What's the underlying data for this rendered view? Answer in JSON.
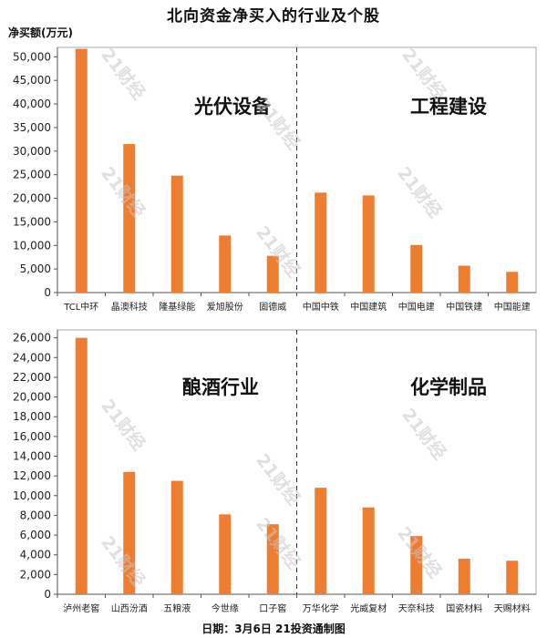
{
  "title": "北向资金净买入的行业及个股",
  "y_unit": "净买额(万元)",
  "footer": "日期：3月6日 21投资通制图",
  "watermark": "21财经",
  "colors": {
    "bar": "#ED7D31",
    "axis": "#555555",
    "frame": "#aaaaaa",
    "divider": "#333333"
  },
  "chart_data": [
    {
      "type": "bar",
      "ylim": [
        0,
        52000
      ],
      "yticks": [
        0,
        5000,
        10000,
        15000,
        20000,
        25000,
        30000,
        35000,
        40000,
        45000,
        50000
      ],
      "tick_labels": [
        "0",
        "5,000",
        "10,000",
        "15,000",
        "20,000",
        "25,000",
        "30,000",
        "35,000",
        "40,000",
        "45,000",
        "50,000"
      ],
      "groups": [
        {
          "industry": "光伏设备",
          "categories": [
            "TCL中环",
            "晶澳科技",
            "隆基绿能",
            "爱旭股份",
            "固德威"
          ],
          "values": [
            51700,
            31500,
            24800,
            12100,
            7800
          ]
        },
        {
          "industry": "工程建设",
          "categories": [
            "中国中铁",
            "中国建筑",
            "中国电建",
            "中国铁建",
            "中国能建"
          ],
          "values": [
            21200,
            20600,
            10100,
            5700,
            4400
          ]
        }
      ]
    },
    {
      "type": "bar",
      "ylim": [
        0,
        26800
      ],
      "yticks": [
        0,
        2000,
        4000,
        6000,
        8000,
        10000,
        12000,
        14000,
        16000,
        18000,
        20000,
        22000,
        24000,
        26000
      ],
      "tick_labels": [
        "0",
        "2,000",
        "4,000",
        "6,000",
        "8,000",
        "10,000",
        "12,000",
        "14,000",
        "16,000",
        "18,000",
        "20,000",
        "22,000",
        "24,000",
        "26,000"
      ],
      "groups": [
        {
          "industry": "酿酒行业",
          "categories": [
            "泸州老窖",
            "山西汾酒",
            "五粮液",
            "今世缘",
            "口子窖"
          ],
          "values": [
            26000,
            12400,
            11500,
            8100,
            7100
          ]
        },
        {
          "industry": "化学制品",
          "categories": [
            "万华化学",
            "光威复材",
            "天奈科技",
            "国瓷材料",
            "天赐材料"
          ],
          "values": [
            10800,
            8800,
            5900,
            3600,
            3400
          ]
        }
      ]
    }
  ]
}
